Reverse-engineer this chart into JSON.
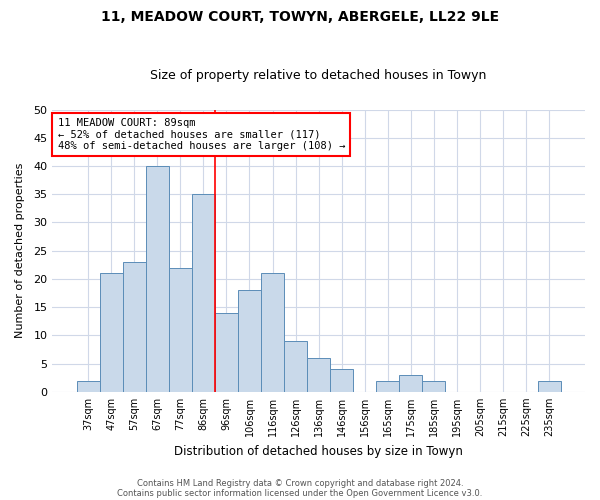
{
  "title1": "11, MEADOW COURT, TOWYN, ABERGELE, LL22 9LE",
  "title2": "Size of property relative to detached houses in Towyn",
  "xlabel": "Distribution of detached houses by size in Towyn",
  "ylabel": "Number of detached properties",
  "categories": [
    "37sqm",
    "47sqm",
    "57sqm",
    "67sqm",
    "77sqm",
    "86sqm",
    "96sqm",
    "106sqm",
    "116sqm",
    "126sqm",
    "136sqm",
    "146sqm",
    "156sqm",
    "165sqm",
    "175sqm",
    "185sqm",
    "195sqm",
    "205sqm",
    "215sqm",
    "225sqm",
    "235sqm"
  ],
  "values": [
    2,
    21,
    23,
    40,
    22,
    35,
    14,
    18,
    21,
    9,
    6,
    4,
    0,
    2,
    3,
    2,
    0,
    0,
    0,
    0,
    2
  ],
  "bar_color": "#c9d9ea",
  "bar_edge_color": "#5b8db8",
  "property_line_x": 5.5,
  "annotation_line1": "11 MEADOW COURT: 89sqm",
  "annotation_line2": "← 52% of detached houses are smaller (117)",
  "annotation_line3": "48% of semi-detached houses are larger (108) →",
  "annotation_box_color": "white",
  "annotation_box_edge_color": "red",
  "property_line_color": "red",
  "ylim": [
    0,
    50
  ],
  "yticks": [
    0,
    5,
    10,
    15,
    20,
    25,
    30,
    35,
    40,
    45,
    50
  ],
  "footer1": "Contains HM Land Registry data © Crown copyright and database right 2024.",
  "footer2": "Contains public sector information licensed under the Open Government Licence v3.0.",
  "bg_color": "#ffffff",
  "plot_bg_color": "#ffffff",
  "grid_color": "#d0d8e8"
}
